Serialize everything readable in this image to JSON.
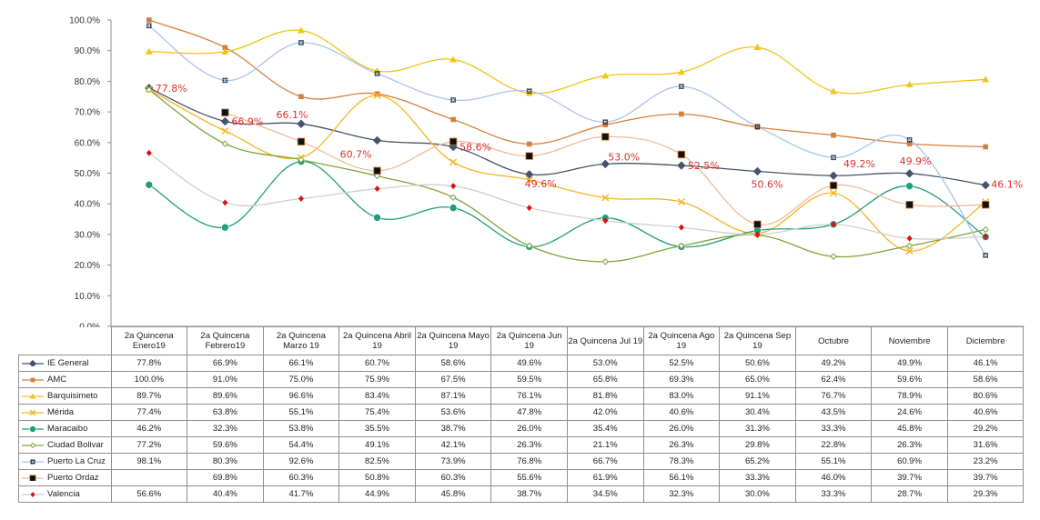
{
  "chart_data": {
    "type": "line",
    "title": "",
    "xlabel": "",
    "ylabel": "",
    "ylim": [
      0,
      100
    ],
    "yticks": [
      "0.0%",
      "10.0%",
      "20.0%",
      "30.0%",
      "40.0%",
      "50.0%",
      "60.0%",
      "70.0%",
      "80.0%",
      "90.0%",
      "100.0%"
    ],
    "grid": false,
    "legend": "data-table-bottom",
    "categories": [
      "2a Quincena Enero19",
      "2a Quincena Febrero19",
      "2a Quincena Marzo 19",
      "2a Quincena Abril 19",
      "2a Quincena Mayo 19",
      "2a Quincena Jun 19",
      "2a Quincena Jul 19",
      "2a Quincena Ago 19",
      "2a Quincena Sep 19",
      "Octubre",
      "Noviembre",
      "Diciembre"
    ],
    "series": [
      {
        "name": "IE General",
        "color": "#44546a",
        "marker": "diamond",
        "values": [
          77.8,
          66.9,
          66.1,
          60.7,
          58.6,
          49.6,
          53.0,
          52.5,
          50.6,
          49.2,
          49.9,
          46.1
        ],
        "labels": [
          "77.8%",
          "66.9%",
          "66.1%",
          "60.7%",
          "58.6%",
          "49.6%",
          "53.0%",
          "52.5%",
          "50.6%",
          "49.2%",
          "49.9%",
          "46.1%"
        ]
      },
      {
        "name": "AMC",
        "color": "#d5803a",
        "marker": "square",
        "values": [
          100.0,
          91.0,
          75.0,
          75.9,
          67.5,
          59.5,
          65.8,
          69.3,
          65.0,
          62.4,
          59.6,
          58.6
        ],
        "labels": [
          "100.0%",
          "91.0%",
          "75.0%",
          "75.9%",
          "67.5%",
          "59.5%",
          "65.8%",
          "69.3%",
          "65.0%",
          "62.4%",
          "59.6%",
          "58.6%"
        ]
      },
      {
        "name": "Barquisimeto",
        "color": "#f0c419",
        "marker": "triangle",
        "values": [
          89.7,
          89.6,
          96.6,
          83.4,
          87.1,
          76.1,
          81.8,
          83.0,
          91.1,
          76.7,
          78.9,
          80.6
        ],
        "labels": [
          "89.7%",
          "89.6%",
          "96.6%",
          "83.4%",
          "87.1%",
          "76.1%",
          "81.8%",
          "83.0%",
          "91.1%",
          "76.7%",
          "78.9%",
          "80.6%"
        ]
      },
      {
        "name": "Mérida",
        "color": "#f5b323",
        "marker": "x",
        "values": [
          77.4,
          63.8,
          55.1,
          75.4,
          53.6,
          47.8,
          42.0,
          40.6,
          30.4,
          43.5,
          24.6,
          40.6
        ],
        "labels": [
          "77.4%",
          "63.8%",
          "55.1%",
          "75.4%",
          "53.6%",
          "47.8%",
          "42.0%",
          "40.6%",
          "30.4%",
          "43.5%",
          "24.6%",
          "40.6%"
        ]
      },
      {
        "name": "Maracaibo",
        "color": "#1e9e7a",
        "marker": "circle",
        "values": [
          46.2,
          32.3,
          53.8,
          35.5,
          38.7,
          26.0,
          35.4,
          26.0,
          31.3,
          33.3,
          45.8,
          29.2
        ],
        "labels": [
          "46.2%",
          "32.3%",
          "53.8%",
          "35.5%",
          "38.7%",
          "26.0%",
          "35.4%",
          "26.0%",
          "31.3%",
          "33.3%",
          "45.8%",
          "29.2%"
        ]
      },
      {
        "name": "Ciudad Bolivar",
        "color": "#7ea53b",
        "marker": "small-diamond",
        "values": [
          77.2,
          59.6,
          54.4,
          49.1,
          42.1,
          26.3,
          21.1,
          26.3,
          29.8,
          22.8,
          26.3,
          31.6
        ],
        "labels": [
          "77.2%",
          "59.6%",
          "54.4%",
          "49.1%",
          "42.1%",
          "26.3%",
          "21.1%",
          "26.3%",
          "29.8%",
          "22.8%",
          "26.3%",
          "31.6%"
        ]
      },
      {
        "name": "Puerto La Cruz",
        "color": "#a9c4e8",
        "marker": "dotted-square",
        "values": [
          98.1,
          80.3,
          92.6,
          82.5,
          73.9,
          76.8,
          66.7,
          78.3,
          65.2,
          55.1,
          60.9,
          23.2
        ],
        "labels": [
          "98.1%",
          "80.3%",
          "92.6%",
          "82.5%",
          "73.9%",
          "76.8%",
          "66.7%",
          "78.3%",
          "65.2%",
          "55.1%",
          "60.9%",
          "23.2%"
        ]
      },
      {
        "name": "Puerto Ordaz",
        "color": "#f3b99a",
        "marker": "black-square",
        "values": [
          null,
          69.8,
          60.3,
          50.8,
          60.3,
          55.6,
          61.9,
          56.1,
          33.3,
          46.0,
          39.7,
          39.7
        ],
        "labels": [
          "",
          "69.8%",
          "60.3%",
          "50.8%",
          "60.3%",
          "55.6%",
          "61.9%",
          "56.1%",
          "33.3%",
          "46.0%",
          "39.7%",
          "39.7%"
        ]
      },
      {
        "name": "Valencia",
        "color": "#cfcfcf",
        "marker": "red-diamond",
        "values": [
          56.6,
          40.4,
          41.7,
          44.9,
          45.8,
          38.7,
          34.5,
          32.3,
          30.0,
          33.3,
          28.7,
          29.3
        ],
        "labels": [
          "56.6%",
          "40.4%",
          "41.7%",
          "44.9%",
          "45.8%",
          "38.7%",
          "34.5%",
          "32.3%",
          "30.0%",
          "33.3%",
          "28.7%",
          "29.3%"
        ]
      }
    ],
    "annotations": [
      "77.8%",
      "66.9%",
      "66.1%",
      "60.7%",
      "58.6%",
      "49.6%",
      "53.0%",
      "52.5%",
      "50.6%",
      "49.2%",
      "49.9%",
      "46.1%"
    ]
  }
}
